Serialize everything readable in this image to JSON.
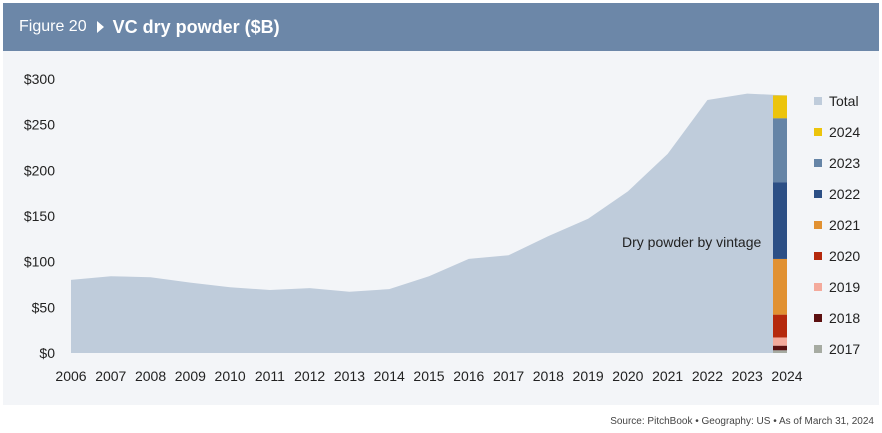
{
  "header": {
    "figure_number": "Figure 20",
    "title": "VC dry powder ($B)"
  },
  "source": "Source: PitchBook  •  Geography: US  •  As of March 31, 2024",
  "chart_data": {
    "type": "area",
    "title": "VC dry powder ($B)",
    "x": [
      "2006",
      "2007",
      "2008",
      "2009",
      "2010",
      "2011",
      "2012",
      "2013",
      "2014",
      "2015",
      "2016",
      "2017",
      "2018",
      "2019",
      "2020",
      "2021",
      "2022",
      "2023",
      "2024"
    ],
    "series": [
      {
        "name": "Total",
        "color": "#bfccdb",
        "values": [
          80,
          84,
          83,
          77,
          72,
          69,
          71,
          67,
          70,
          84,
          103,
          107,
          128,
          147,
          177,
          218,
          277,
          284,
          282
        ]
      }
    ],
    "stacked_bar_2024": {
      "x": "2024",
      "segments": [
        {
          "name": "2017",
          "value": 3,
          "color": "#a6aba2"
        },
        {
          "name": "2018",
          "value": 5,
          "color": "#5c1010"
        },
        {
          "name": "2019",
          "value": 9,
          "color": "#f4aa9c"
        },
        {
          "name": "2020",
          "value": 25,
          "color": "#b5290d"
        },
        {
          "name": "2021",
          "value": 61,
          "color": "#e19132"
        },
        {
          "name": "2022",
          "value": 84,
          "color": "#2c4f85"
        },
        {
          "name": "2023",
          "value": 70,
          "color": "#6584a6"
        },
        {
          "name": "2024",
          "value": 25,
          "color": "#ecc40c"
        }
      ]
    },
    "annotation": "Dry powder by vintage",
    "y_ticks": [
      "$0",
      "$50",
      "$100",
      "$150",
      "$200",
      "$250",
      "$300"
    ],
    "ylim": [
      0,
      300
    ],
    "grid": false,
    "legend": {
      "placement": "right",
      "entries": [
        {
          "label": "Total",
          "color": "#bfccdb"
        },
        {
          "label": "2024",
          "color": "#ecc40c"
        },
        {
          "label": "2023",
          "color": "#6584a6"
        },
        {
          "label": "2022",
          "color": "#2c4f85"
        },
        {
          "label": "2021",
          "color": "#e19132"
        },
        {
          "label": "2020",
          "color": "#b5290d"
        },
        {
          "label": "2019",
          "color": "#f4aa9c"
        },
        {
          "label": "2018",
          "color": "#5c1010"
        },
        {
          "label": "2017",
          "color": "#a6aba2"
        }
      ]
    }
  }
}
